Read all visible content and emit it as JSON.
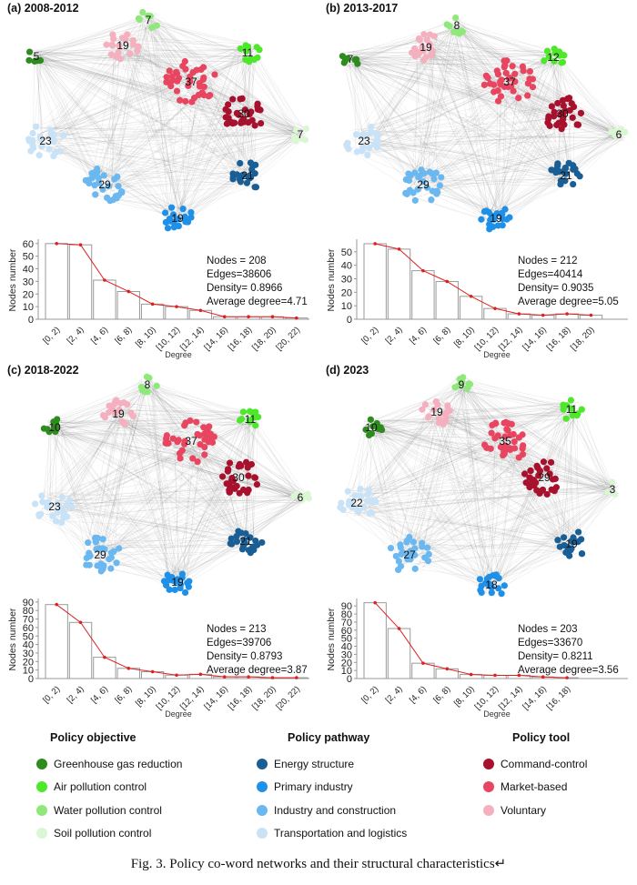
{
  "figure": {
    "caption": "Fig. 3. Policy co-word networks and their structural characteristics↵"
  },
  "colors": {
    "greenhouse": "#2e8b1e",
    "air": "#4de82a",
    "water": "#8ee87a",
    "soil": "#d9f7d2",
    "energy": "#1a5e96",
    "primary": "#1e90e8",
    "industry": "#6bb8f0",
    "transport": "#c8e2f8",
    "command": "#a8112e",
    "market": "#e84560",
    "voluntary": "#f5b0bf",
    "bar_stroke": "#9a9a9a",
    "line": "#e02020",
    "edge": "#777777"
  },
  "legend": {
    "columns": [
      {
        "title": "Policy objective",
        "items": [
          {
            "label": "Greenhouse gas reduction",
            "color_key": "greenhouse"
          },
          {
            "label": "Air pollution control",
            "color_key": "air"
          },
          {
            "label": "Water pollution control",
            "color_key": "water"
          },
          {
            "label": "Soil pollution control",
            "color_key": "soil"
          }
        ]
      },
      {
        "title": "Policy pathway",
        "items": [
          {
            "label": "Energy structure",
            "color_key": "energy"
          },
          {
            "label": "Primary industry",
            "color_key": "primary"
          },
          {
            "label": "Industry and construction",
            "color_key": "industry"
          },
          {
            "label": "Transportation and logistics",
            "color_key": "transport"
          }
        ]
      },
      {
        "title": "Policy tool",
        "items": [
          {
            "label": "Command-control",
            "color_key": "command"
          },
          {
            "label": "Market-based",
            "color_key": "market"
          },
          {
            "label": "Voluntary",
            "color_key": "voluntary"
          }
        ]
      }
    ]
  },
  "chart_data": [
    {
      "type": "network",
      "title": "(a) 2008-2012",
      "clusters": [
        {
          "key": "greenhouse",
          "count": 5
        },
        {
          "key": "water",
          "count": 7
        },
        {
          "key": "voluntary",
          "count": 19
        },
        {
          "key": "air",
          "count": 11
        },
        {
          "key": "market",
          "count": 37
        },
        {
          "key": "command",
          "count": 30
        },
        {
          "key": "soil",
          "count": 7
        },
        {
          "key": "transport",
          "count": 23
        },
        {
          "key": "industry",
          "count": 29
        },
        {
          "key": "energy",
          "count": 21
        },
        {
          "key": "primary",
          "count": 19
        }
      ]
    },
    {
      "type": "bar",
      "subtype": "histogram-with-line",
      "categories": [
        "[0, 2)",
        "[2, 4)",
        "[4, 6)",
        "[6, 8)",
        "[8, 10)",
        "[10, 12)",
        "[12, 14)",
        "[14, 16)",
        "[16, 18)",
        "[18, 20)",
        "[20, 22)"
      ],
      "values": [
        60,
        59,
        31,
        22,
        12,
        10,
        7,
        2,
        2,
        2,
        1
      ],
      "xlabel": "Degree",
      "ylabel": "Nodes number",
      "ylim": [
        0,
        62
      ],
      "yticks": [
        0,
        10,
        20,
        30,
        40,
        50,
        60
      ],
      "stats": [
        "Nodes = 208",
        "Edges=38606",
        "Density= 0.8966",
        "Average degree=4.71"
      ]
    },
    {
      "type": "network",
      "title": "(b) 2013-2017",
      "clusters": [
        {
          "key": "greenhouse",
          "count": 7
        },
        {
          "key": "water",
          "count": 8
        },
        {
          "key": "voluntary",
          "count": 19
        },
        {
          "key": "air",
          "count": 12
        },
        {
          "key": "market",
          "count": 37
        },
        {
          "key": "command",
          "count": 30
        },
        {
          "key": "soil",
          "count": 6
        },
        {
          "key": "transport",
          "count": 23
        },
        {
          "key": "industry",
          "count": 29
        },
        {
          "key": "energy",
          "count": 21
        },
        {
          "key": "primary",
          "count": 19
        }
      ]
    },
    {
      "type": "bar",
      "subtype": "histogram-with-line",
      "categories": [
        "[0, 2)",
        "[2, 4)",
        "[4, 6)",
        "[6, 8)",
        "[8, 10)",
        "[10, 12)",
        "[12, 14)",
        "[14, 16)",
        "[16, 18)",
        "[18, 20)"
      ],
      "values": [
        56,
        52,
        36,
        28,
        17,
        8,
        4,
        3,
        4,
        3
      ],
      "xlabel": "Degree",
      "ylabel": "Nodes number",
      "ylim": [
        0,
        58
      ],
      "yticks": [
        0,
        10,
        20,
        30,
        40,
        50
      ],
      "stats": [
        "Nodes = 212",
        "Edges=40414",
        "Density= 0.9035",
        "Average degree=5.05"
      ]
    },
    {
      "type": "network",
      "title": "(c) 2018-2022",
      "clusters": [
        {
          "key": "greenhouse",
          "count": 10
        },
        {
          "key": "water",
          "count": 8
        },
        {
          "key": "voluntary",
          "count": 19
        },
        {
          "key": "air",
          "count": 11
        },
        {
          "key": "market",
          "count": 37
        },
        {
          "key": "command",
          "count": 30
        },
        {
          "key": "soil",
          "count": 6
        },
        {
          "key": "transport",
          "count": 23
        },
        {
          "key": "industry",
          "count": 29
        },
        {
          "key": "energy",
          "count": 21
        },
        {
          "key": "primary",
          "count": 19
        }
      ]
    },
    {
      "type": "bar",
      "subtype": "histogram-with-line",
      "categories": [
        "[0, 2)",
        "[2, 4)",
        "[4, 6)",
        "[6, 8)",
        "[8, 10)",
        "[10, 12)",
        "[12, 14)",
        "[14, 16)",
        "[16, 18)",
        "[18, 20)",
        "[20, 22)"
      ],
      "values": [
        87,
        66,
        25,
        12,
        8,
        4,
        5,
        2,
        2,
        1,
        1
      ],
      "xlabel": "Degree",
      "ylabel": "Nodes number",
      "ylim": [
        0,
        92
      ],
      "yticks": [
        0,
        10,
        20,
        30,
        40,
        50,
        60,
        70,
        80,
        90
      ],
      "stats": [
        "Nodes = 213",
        "Edges=39706",
        "Density= 0.8793",
        "Average degree=3.87"
      ]
    },
    {
      "type": "network",
      "title": "(d) 2023",
      "clusters": [
        {
          "key": "greenhouse",
          "count": 10
        },
        {
          "key": "water",
          "count": 9
        },
        {
          "key": "voluntary",
          "count": 19
        },
        {
          "key": "air",
          "count": 11
        },
        {
          "key": "market",
          "count": 35
        },
        {
          "key": "command",
          "count": 29
        },
        {
          "key": "soil",
          "count": 3
        },
        {
          "key": "transport",
          "count": 22
        },
        {
          "key": "industry",
          "count": 27
        },
        {
          "key": "energy",
          "count": 19
        },
        {
          "key": "primary",
          "count": 18
        }
      ]
    },
    {
      "type": "bar",
      "subtype": "histogram-with-line",
      "categories": [
        "[0, 2)",
        "[2, 4)",
        "[4, 6)",
        "[6, 8)",
        "[8, 10)",
        "[10, 12)",
        "[12, 14)",
        "[14, 16)",
        "[16, 18)"
      ],
      "values": [
        94,
        62,
        19,
        12,
        5,
        4,
        4,
        2,
        1
      ],
      "xlabel": "Degree",
      "ylabel": "Nodes number",
      "ylim": [
        0,
        97
      ],
      "yticks": [
        0,
        10,
        20,
        30,
        40,
        50,
        60,
        70,
        80,
        90
      ],
      "stats": [
        "Nodes = 203",
        "Edges=33670",
        "Density= 0.8211",
        "Average degree=3.56"
      ]
    }
  ]
}
